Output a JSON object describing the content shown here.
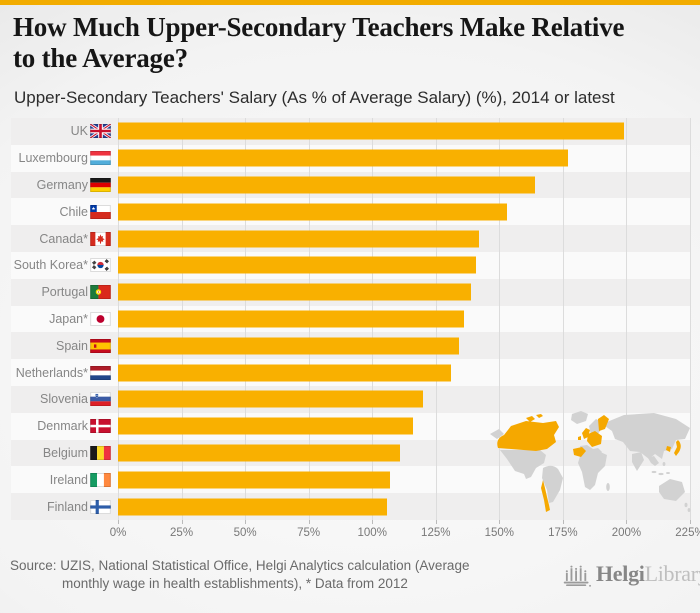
{
  "header": {
    "title": "How Much Upper-Secondary Teachers Make Relative to the Average?",
    "title_line1": "How Much Upper-Secondary Teachers Make Relative",
    "title_line2": "to the Average?",
    "subtitle": "Upper-Secondary Teachers' Salary (As % of Average Salary) (%), 2014 or latest"
  },
  "chart_data": {
    "type": "bar",
    "orientation": "horizontal",
    "title": "How Much Upper-Secondary Teachers Make Relative to the Average?",
    "subtitle": "Upper-Secondary Teachers' Salary (As % of Average Salary) (%), 2014 or latest",
    "unit": "%",
    "categories": [
      "UK",
      "Luxembourg",
      "Germany",
      "Chile",
      "Canada*",
      "South Korea*",
      "Portugal",
      "Japan*",
      "Spain",
      "Netherlands*",
      "Slovenia",
      "Denmark",
      "Belgium",
      "Ireland",
      "Finland"
    ],
    "values": [
      199,
      177,
      164,
      153,
      142,
      141,
      139,
      136,
      134,
      131,
      120,
      116,
      111,
      107,
      106
    ],
    "flags": [
      "gb",
      "lu",
      "de",
      "cl",
      "ca",
      "kr",
      "pt",
      "jp",
      "es",
      "nl",
      "si",
      "dk",
      "be",
      "ie",
      "fi"
    ],
    "x_ticks": [
      "0%",
      "25%",
      "50%",
      "75%",
      "100%",
      "125%",
      "150%",
      "175%",
      "200%",
      "225%"
    ],
    "xlim": [
      0,
      225
    ],
    "grid": true,
    "legend": "none",
    "bar_color": "#F9B000",
    "footnote": "* Data from 2012"
  },
  "footer": {
    "source_line1": "Source: UZIS, National Statistical Office, Helgi Analytics calculation (Average",
    "source_line2": "monthly wage in health establishments), * Data from 2012",
    "logo_primary": "Helgi",
    "logo_secondary": "Library."
  },
  "colors": {
    "accent_top_bar": "#F2AC00",
    "bar": "#F9B000",
    "row_stripe": "#efeeee",
    "map_gray": "#d2d2d2",
    "map_highlight": "#F5A800"
  }
}
